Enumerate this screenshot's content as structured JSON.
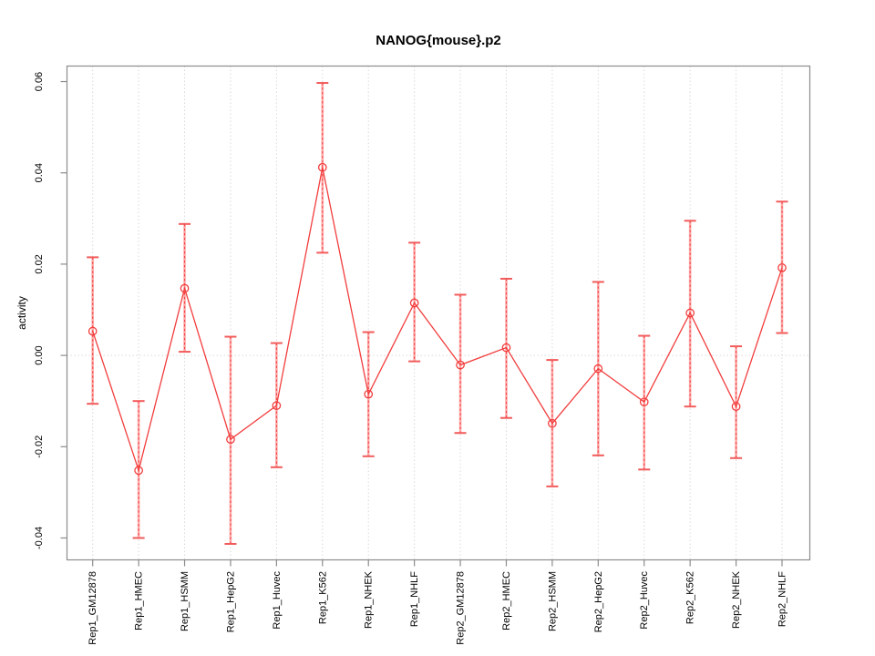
{
  "title": "NANOG{mouse}.p2",
  "chart_data": {
    "type": "line",
    "title": "NANOG{mouse}.p2",
    "xlabel": "",
    "ylabel": "activity",
    "categories": [
      "Rep1_GM12878",
      "Rep1_HMEC",
      "Rep1_HSMM",
      "Rep1_HepG2",
      "Rep1_Huvec",
      "Rep1_K562",
      "Rep1_NHEK",
      "Rep1_NHLF",
      "Rep2_GM12878",
      "Rep2_HMEC",
      "Rep2_HSMM",
      "Rep2_HepG2",
      "Rep2_Huvec",
      "Rep2_K562",
      "Rep2_NHEK",
      "Rep2_NHLF"
    ],
    "series": [
      {
        "name": "activity",
        "values": [
          0.0053,
          -0.0252,
          0.0147,
          -0.0184,
          -0.011,
          0.0412,
          -0.0085,
          0.0115,
          -0.0021,
          0.0017,
          -0.0149,
          -0.0029,
          -0.0102,
          0.0093,
          -0.0112,
          0.0192
        ],
        "error_upper": [
          0.0215,
          -0.01,
          0.0288,
          0.0041,
          0.0027,
          0.0597,
          0.0051,
          0.0247,
          0.0133,
          0.0168,
          -0.001,
          0.0161,
          0.0043,
          0.0295,
          0.002,
          0.0337
        ],
        "error_lower": [
          -0.0106,
          -0.04,
          0.0008,
          -0.0413,
          -0.0245,
          0.0225,
          -0.0221,
          -0.0013,
          -0.017,
          -0.0137,
          -0.0287,
          -0.0219,
          -0.025,
          -0.0112,
          -0.0225,
          0.0049
        ]
      }
    ],
    "ytick_values": [
      -0.04,
      -0.02,
      0.0,
      0.02,
      0.04,
      0.06
    ],
    "ytick_labels": [
      "-0.04",
      "-0.02",
      "0.00",
      "0.02",
      "0.04",
      "0.06"
    ],
    "ylim": [
      -0.0448,
      0.0634
    ],
    "zero_line": 0.0,
    "legend": null,
    "layout_hints": {
      "x_tick_rotation_deg": 90,
      "y_tick_rotation_deg": 90,
      "grid": "dotted vertical line at each category; dotted horizontal line at y=0",
      "marker": "open-circle",
      "error_bars": "whisker caps"
    },
    "colors": {
      "line": "#f23d3d",
      "marker": "#f23d3d",
      "error_bar_fill": "#ffabab",
      "error_bar_cap": "#f25b5b",
      "grid": "#d9d9d9",
      "box": "#8c8c8c",
      "text": "#000000"
    }
  }
}
